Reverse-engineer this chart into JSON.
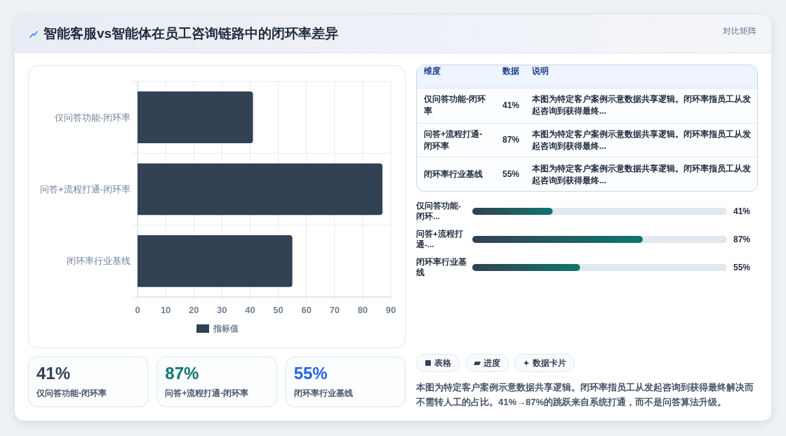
{
  "chart_data": [
    {
      "type": "other",
      "title": "智能客服vs智能体在员工咨询链路中的闭环率差异",
      "annotations": [
        "对比矩阵"
      ]
    },
    {
      "type": "bar",
      "orientation": "horizontal",
      "categories": [
        "仅问答功能-闭环率",
        "问答+流程打通-闭环率",
        "闭环率行业基线"
      ],
      "series": [
        {
          "name": "指标值",
          "color": "#334155",
          "values": [
            41,
            87,
            55
          ]
        }
      ],
      "xlim": [
        0,
        90
      ],
      "xticks": [
        0,
        10,
        20,
        30,
        40,
        50,
        60,
        70,
        80,
        90
      ],
      "grid": true,
      "legend": "bottom"
    },
    {
      "type": "other",
      "categories": [
        "仅问答功能-闭环率",
        "问答+流程打通-闭环率",
        "闭环率行业基线"
      ],
      "value_labels": [
        "41%",
        "87%",
        "55%"
      ],
      "annotations": [
        "维度",
        "数据",
        "说明",
        "本图为特定客户案例示意数据共享逻辑。闭环率指员工从发起咨询到获得最终...",
        "本图为特定客户案例示意数据共享逻辑。闭环率指员工从发起咨询到获得最终...",
        "本图为特定客户案例示意数据共享逻辑。闭环率指员工从发起咨询到获得最终..."
      ]
    },
    {
      "type": "bar",
      "orientation": "horizontal",
      "categories": [
        "仅问答功能-闭环...",
        "问答+流程打通-...",
        "闭环率行业基线"
      ],
      "series": [
        {
          "color": "#0f766e",
          "values": [
            41,
            87,
            55
          ],
          "value_labels": [
            "41%",
            "87%",
            "55%"
          ]
        }
      ],
      "xlim": [
        0,
        130
      ],
      "tick_labels": "y"
    },
    {
      "type": "other",
      "categories": [
        "仅问答功能-闭环率",
        "问答+流程打通-闭环率",
        "闭环率行业基线"
      ],
      "value_labels": [
        "41%",
        "87%",
        "55%"
      ],
      "colors": [
        "#334155",
        "#0f766e",
        "#2563eb"
      ]
    },
    {
      "type": "other",
      "annotations": [
        "表格",
        "进度",
        "数据卡片",
        "本图为特定客户案例示意数据共享逻辑。闭环率指员工从发起咨询到获得最终解决而不需转人工的占比。41%→87%的跳跃来自系统打通，而不是问答算法升级。"
      ]
    }
  ]
}
